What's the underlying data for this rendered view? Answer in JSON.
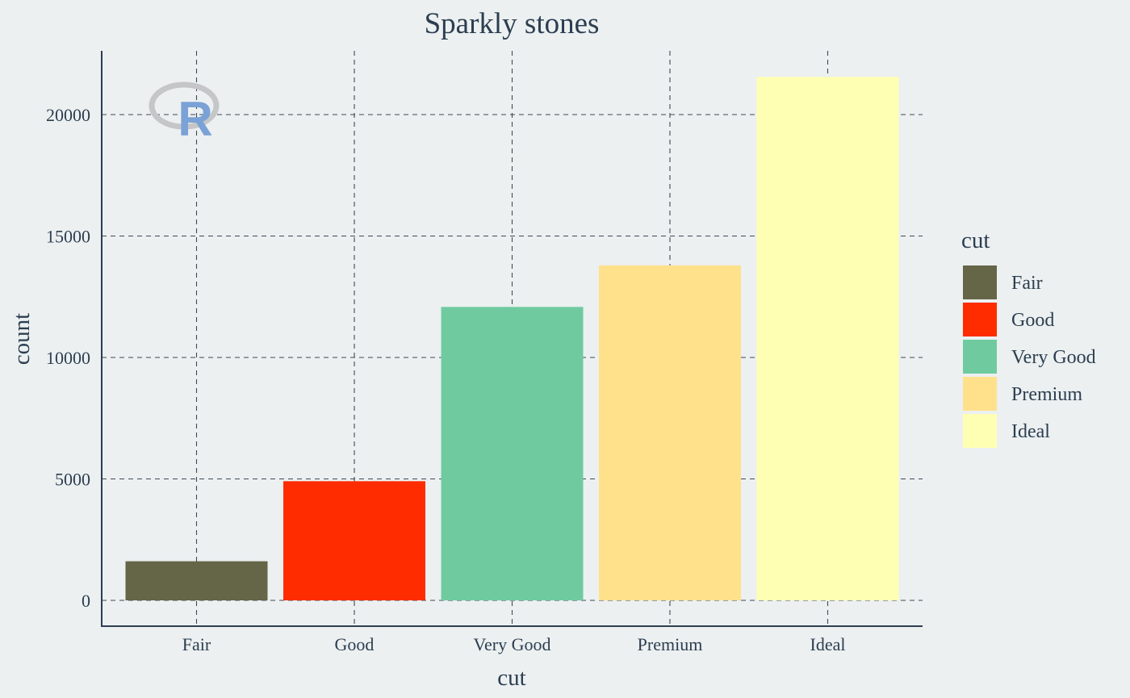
{
  "chart_data": {
    "type": "bar",
    "title": "Sparkly stones",
    "xlabel": "cut",
    "ylabel": "count",
    "categories": [
      "Fair",
      "Good",
      "Very Good",
      "Premium",
      "Ideal"
    ],
    "values": [
      1610,
      4906,
      12082,
      13791,
      21551
    ],
    "colors": [
      "#656548",
      "#ff2c00",
      "#6fcb9f",
      "#ffe18c",
      "#ffffb3"
    ],
    "ylim": [
      0,
      22600
    ],
    "yticks": [
      0,
      5000,
      10000,
      15000,
      20000
    ],
    "grid": true,
    "legend": {
      "title": "cut",
      "placement": "right",
      "items": [
        "Fair",
        "Good",
        "Very Good",
        "Premium",
        "Ideal"
      ]
    },
    "logo_text": "R"
  }
}
